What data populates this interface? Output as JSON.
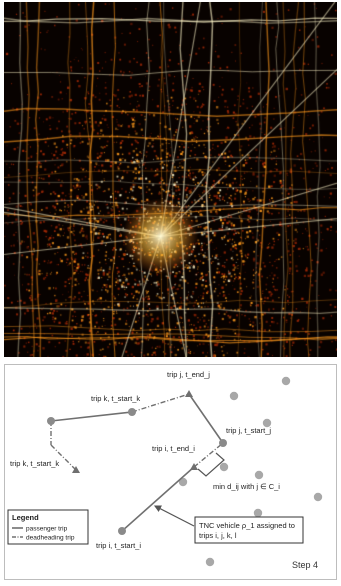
{
  "map_panel": {
    "colors": {
      "background": "#080200",
      "dense": "#fff6c8",
      "mid": "#ff9a1c",
      "low": "#a82a06"
    }
  },
  "diagram": {
    "labels": {
      "trip_k_start": "trip k, t_start_k",
      "trip_k_mid": "trip k, t_start_k",
      "trip_j_end": "trip j, t_end_j",
      "trip_j_start": "trip j, t_start_j",
      "trip_i_end": "trip i, t_end_i",
      "trip_i_start": "trip i, t_start_i",
      "min_d": "min d_ij with j ∈ C_i",
      "vehicle_line1": "TNC vehicle ρ_1 assigned to",
      "vehicle_line2": "trips i, j, k, l",
      "step": "Step 4"
    },
    "legend": {
      "title": "Legend",
      "passenger": "passenger trip",
      "deadheading": "deadheading trip"
    },
    "colors": {
      "line": "#707070",
      "node": "#8a8a8a",
      "candidate": "#a8a8a8"
    }
  }
}
